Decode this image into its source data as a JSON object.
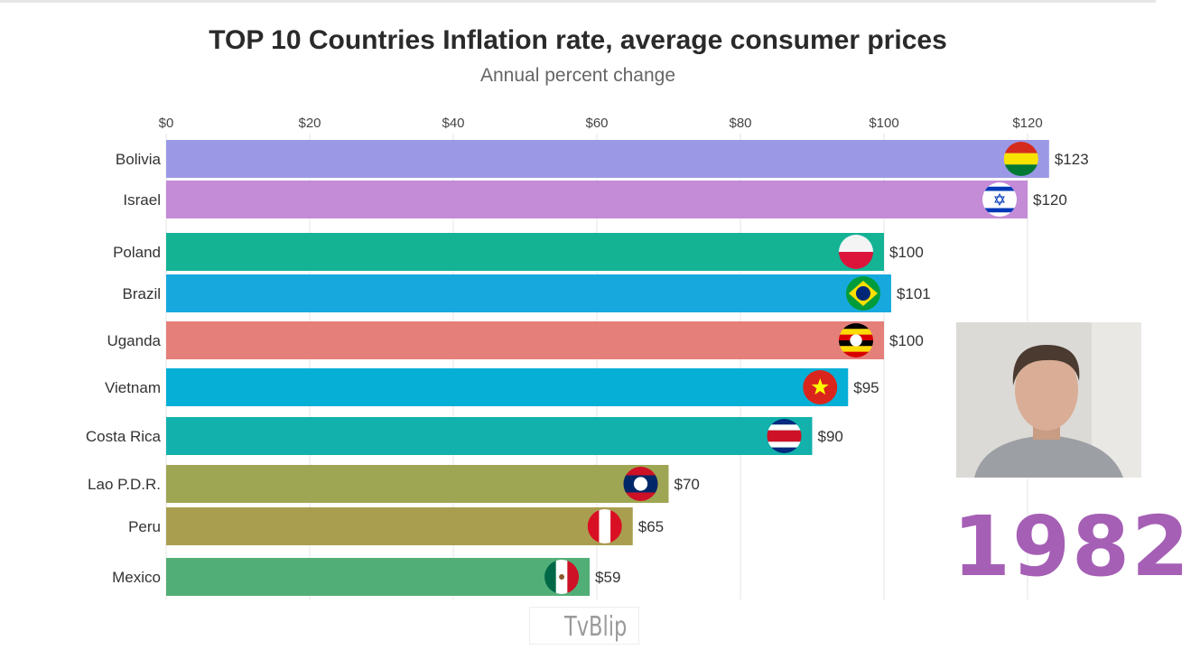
{
  "chart_data": {
    "type": "bar",
    "orientation": "horizontal",
    "title": "TOP 10 Countries Inflation rate, average consumer prices",
    "subtitle": "Annual percent change",
    "categories": [
      "Bolivia",
      "Israel",
      "Poland",
      "Brazil",
      "Uganda",
      "Vietnam",
      "Costa Rica",
      "Lao P.D.R.",
      "Peru",
      "Mexico"
    ],
    "values": [
      123,
      120,
      100,
      101,
      100,
      95,
      90,
      70,
      65,
      59
    ],
    "value_labels": [
      "$123",
      "$120",
      "$100",
      "$101",
      "$100",
      "$95",
      "$90",
      "$70",
      "$65",
      "$59"
    ],
    "colors": [
      "#9b99e6",
      "#c48bd6",
      "#13b394",
      "#17a9de",
      "#e57f7a",
      "#05afd6",
      "#12b1ac",
      "#9fa653",
      "#a99e4f",
      "#52ae77"
    ],
    "flags": [
      "bolivia-flag",
      "israel-flag",
      "poland-flag",
      "brazil-flag",
      "uganda-flag",
      "vietnam-flag",
      "costa-rica-flag",
      "laos-flag",
      "peru-flag",
      "mexico-flag"
    ],
    "xticks": [
      0,
      20,
      40,
      60,
      80,
      100,
      120
    ],
    "xtick_labels": [
      "$0",
      "$20",
      "$40",
      "$60",
      "$80",
      "$100",
      "$120"
    ],
    "xlim": [
      0,
      120
    ],
    "grid": true,
    "axis_position": "top"
  },
  "year": "1982",
  "watermark": "TvBlip"
}
